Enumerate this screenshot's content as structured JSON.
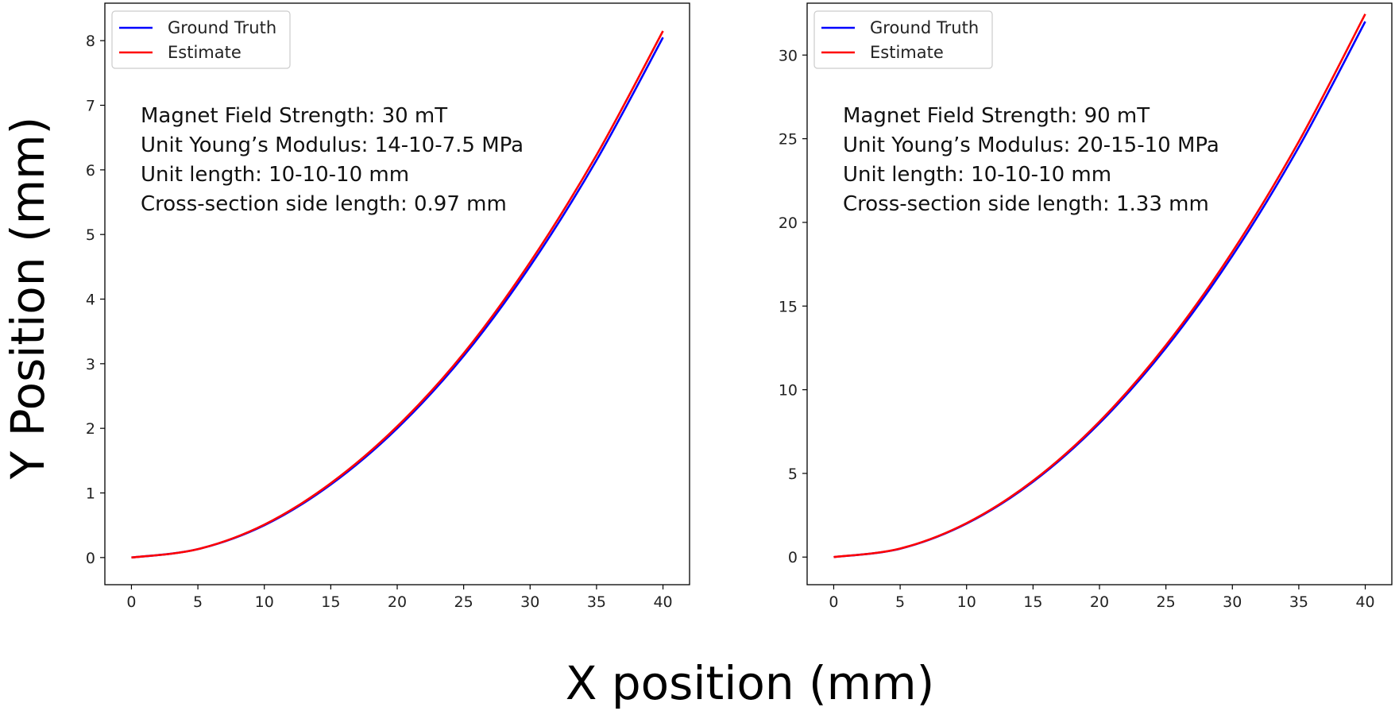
{
  "figure": {
    "xlabel": "X position (mm)",
    "ylabel": "Y Position (mm)"
  },
  "colors": {
    "ground_truth": "#0000ff",
    "estimate": "#ff0000"
  },
  "chart_data": [
    {
      "type": "line",
      "title": "",
      "xlim": [
        -2,
        42
      ],
      "ylim": [
        -0.42,
        8.58
      ],
      "xticks": [
        0,
        5,
        10,
        15,
        20,
        25,
        30,
        35,
        40
      ],
      "xtick_labels": [
        "0",
        "5",
        "10",
        "15",
        "20",
        "25",
        "30",
        "35",
        "40"
      ],
      "yticks": [
        0,
        1,
        2,
        3,
        4,
        5,
        6,
        7,
        8
      ],
      "ytick_labels": [
        "0",
        "1",
        "2",
        "3",
        "4",
        "5",
        "6",
        "7",
        "8"
      ],
      "legend": {
        "position": "top-left",
        "entries": [
          "Ground Truth",
          "Estimate"
        ]
      },
      "annotations": [
        "Magnet Field Strength: 30 mT",
        "Unit Young’s Modulus: 14-10-7.5 MPa",
        "Unit length: 10-10-10 mm",
        "Cross-section side length: 0.97 mm"
      ],
      "series": [
        {
          "name": "Ground Truth",
          "x": [
            0,
            5,
            10,
            15,
            20,
            25,
            30,
            35,
            40
          ],
          "y": [
            0,
            0.13,
            0.5,
            1.13,
            2.0,
            3.12,
            4.51,
            6.15,
            8.05
          ]
        },
        {
          "name": "Estimate",
          "x": [
            0,
            5,
            10,
            15,
            20,
            25,
            30,
            35,
            40
          ],
          "y": [
            0,
            0.13,
            0.51,
            1.15,
            2.03,
            3.16,
            4.57,
            6.23,
            8.15
          ]
        }
      ]
    },
    {
      "type": "line",
      "title": "",
      "xlim": [
        -2,
        42
      ],
      "ylim": [
        -1.65,
        33.1
      ],
      "xticks": [
        0,
        5,
        10,
        15,
        20,
        25,
        30,
        35,
        40
      ],
      "xtick_labels": [
        "0",
        "5",
        "10",
        "15",
        "20",
        "25",
        "30",
        "35",
        "40"
      ],
      "yticks": [
        0,
        5,
        10,
        15,
        20,
        25,
        30
      ],
      "ytick_labels": [
        "0",
        "5",
        "10",
        "15",
        "20",
        "25",
        "30"
      ],
      "legend": {
        "position": "top-left",
        "entries": [
          "Ground Truth",
          "Estimate"
        ]
      },
      "annotations": [
        "Magnet Field Strength: 90 mT",
        "Unit Young’s Modulus: 20-15-10 MPa",
        "Unit length: 10-10-10 mm",
        "Cross-section side length: 1.33 mm"
      ],
      "series": [
        {
          "name": "Ground Truth",
          "x": [
            0,
            5,
            10,
            15,
            20,
            25,
            30,
            35,
            40
          ],
          "y": [
            0,
            0.5,
            2.0,
            4.5,
            8.0,
            12.5,
            18.0,
            24.5,
            32.0
          ]
        },
        {
          "name": "Estimate",
          "x": [
            0,
            5,
            10,
            15,
            20,
            25,
            30,
            35,
            40
          ],
          "y": [
            0,
            0.51,
            2.03,
            4.56,
            8.1,
            12.66,
            18.24,
            24.83,
            32.45
          ]
        }
      ]
    }
  ]
}
